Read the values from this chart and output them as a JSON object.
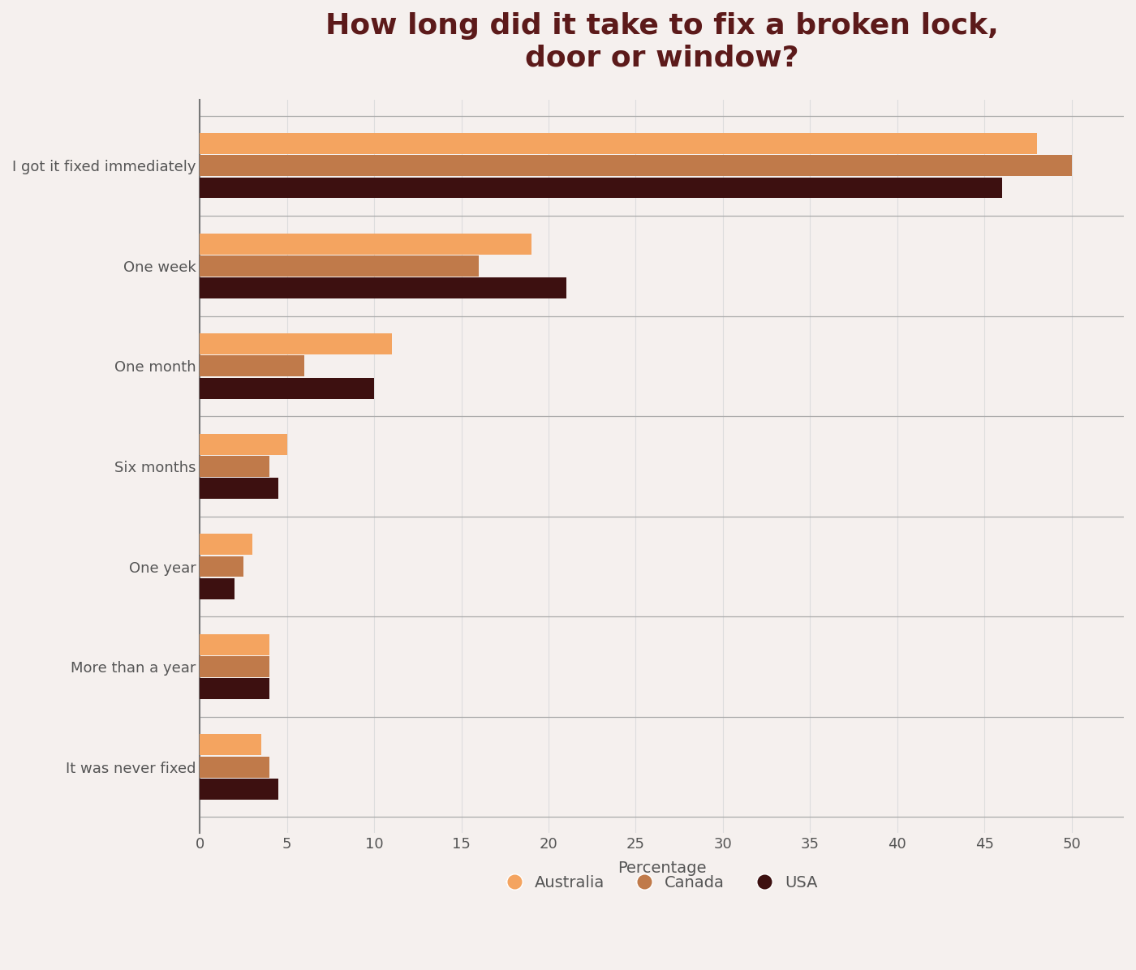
{
  "title": "How long did it take to fix a broken lock,\ndoor or window?",
  "categories": [
    "I got it fixed immediately",
    "One week",
    "One month",
    "Six months",
    "One year",
    "More than a year",
    "It was never fixed"
  ],
  "series": {
    "Australia": [
      48,
      19,
      11,
      5,
      3,
      4,
      3.5
    ],
    "Canada": [
      50,
      16,
      6,
      4,
      2.5,
      4,
      4
    ],
    "USA": [
      46,
      21,
      10,
      4.5,
      2,
      4,
      4.5
    ]
  },
  "colors": {
    "Australia": "#F4A460",
    "Canada": "#C07A4A",
    "USA": "#3D1010"
  },
  "xlabel": "Percentage",
  "xlim": [
    0,
    53
  ],
  "xticks": [
    0,
    5,
    10,
    15,
    20,
    25,
    30,
    35,
    40,
    45,
    50
  ],
  "background_color": "#F5F0EE",
  "title_color": "#5C1A1A",
  "title_fontsize": 26,
  "axis_label_fontsize": 14,
  "tick_fontsize": 13,
  "legend_fontsize": 14,
  "bar_height": 0.22
}
